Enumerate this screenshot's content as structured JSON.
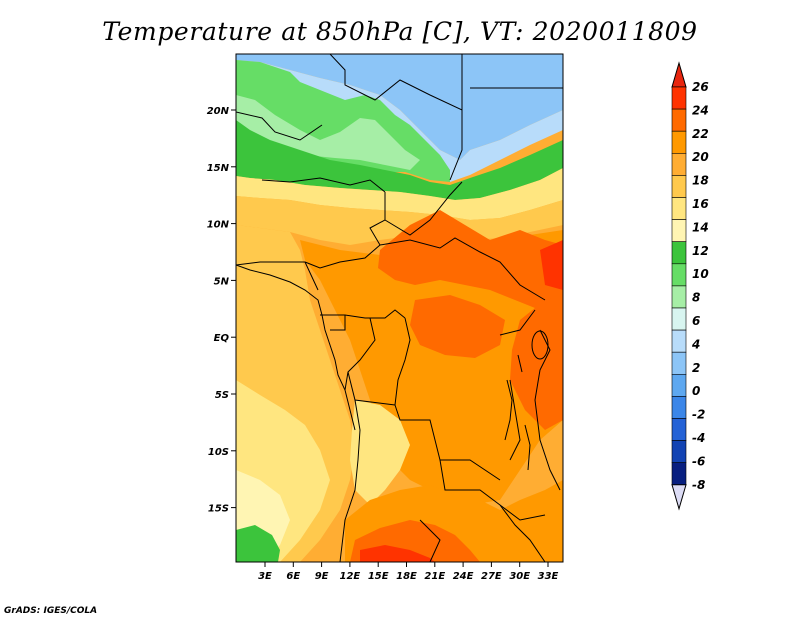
{
  "map": {
    "title": "Temperature at 850hPa [C], VT: 2020011809",
    "credit": "GrADS: IGES/COLA",
    "lon_labels": [
      "3E",
      "6E",
      "9E",
      "12E",
      "15E",
      "18E",
      "21E",
      "24E",
      "27E",
      "30E",
      "33E"
    ],
    "lat_labels": [
      "20N",
      "15N",
      "10N",
      "5N",
      "EQ",
      "5S",
      "10S",
      "15S"
    ]
  },
  "colorbar": {
    "labels": [
      "26",
      "24",
      "22",
      "20",
      "18",
      "16",
      "14",
      "12",
      "10",
      "8",
      "6",
      "4",
      "2",
      "0",
      "-2",
      "-4",
      "-6",
      "-8"
    ],
    "colors": [
      "#ff3300",
      "#ff6a00",
      "#ff9900",
      "#ffad33",
      "#ffc94d",
      "#ffe680",
      "#fff5b3",
      "#3cc43c",
      "#66dd66",
      "#a6eea6",
      "#d8f5f0",
      "#b8dcfa",
      "#8cc5f7",
      "#5ea8f0",
      "#3b86e8",
      "#2462d6",
      "#1243b3",
      "#081f80",
      "#000a55"
    ],
    "top_color": "#e8260f",
    "bottom_color": "#dcdcf5"
  },
  "field_colors": {
    "green": "#3cc43c",
    "light_green": "#66dd66",
    "pale_green": "#a6eea6",
    "light_blue": "#b8dcfa",
    "blue": "#8cc5f7",
    "yellow_pale": "#fff5b3",
    "yellow": "#ffe680",
    "gold": "#ffc94d",
    "orange_light": "#ffad33",
    "orange": "#ff9900",
    "orange_dark": "#ff6a00",
    "red": "#ff3300"
  }
}
